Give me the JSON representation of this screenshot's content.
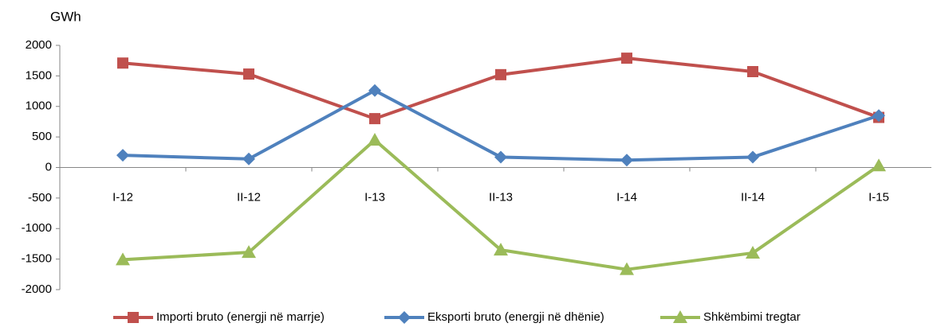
{
  "chart_data": {
    "type": "line",
    "y_label": "GWh",
    "categories": [
      "I-12",
      "II-12",
      "I-13",
      "II-13",
      "I-14",
      "II-14",
      "I-15"
    ],
    "series": [
      {
        "name": "Importi bruto (energji në marrje)",
        "color": "#c0504d",
        "marker": "square",
        "values": [
          1710,
          1530,
          800,
          1520,
          1790,
          1570,
          820
        ]
      },
      {
        "name": "Eksporti bruto (energji në dhënie)",
        "color": "#4f81bd",
        "marker": "diamond",
        "values": [
          200,
          140,
          1260,
          170,
          120,
          170,
          850
        ]
      },
      {
        "name": "Shkëmbimi tregtar",
        "color": "#9bbb59",
        "marker": "triangle",
        "values": [
          -1510,
          -1390,
          450,
          -1350,
          -1670,
          -1400,
          30
        ]
      }
    ],
    "ylim": [
      -2000,
      2000
    ],
    "yticks": [
      -2000,
      -1500,
      -1000,
      -500,
      0,
      500,
      1000,
      1500,
      2000
    ],
    "grid": false,
    "legend": "bottom"
  }
}
